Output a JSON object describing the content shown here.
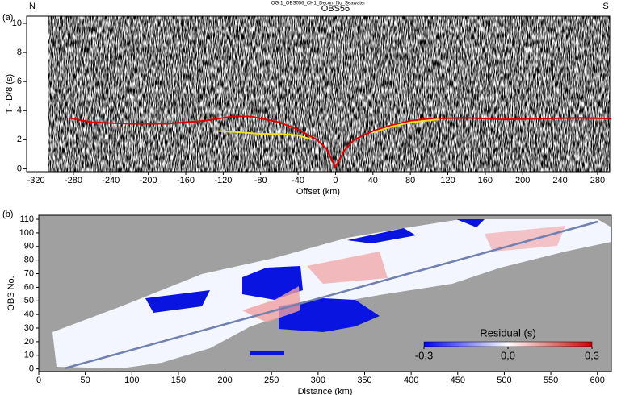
{
  "chart_data": [
    {
      "type": "line",
      "title": "OGr1_OBS056_CH1_Decon_No_Seawater",
      "panel": "(a)",
      "station": "OBS56",
      "left_label": "N",
      "right_label": "S",
      "x_label": "Offset (km)",
      "y_label": "T - D/8 (s)",
      "xlim": [
        -330,
        293
      ],
      "ylim": [
        -0.2,
        10.5
      ],
      "xticks": [
        -320,
        -280,
        -240,
        -200,
        -160,
        -120,
        -80,
        -40,
        0,
        40,
        80,
        120,
        160,
        200,
        240,
        280
      ],
      "yticks": [
        0,
        2,
        4,
        6,
        8,
        10
      ],
      "series": [
        {
          "color": "#e00000",
          "x": [
            -285,
            -260,
            -220,
            -180,
            -140,
            -110,
            -90,
            -60,
            -40,
            -20,
            -10,
            -3,
            0,
            3,
            10,
            20,
            40,
            60,
            80,
            100,
            140,
            180,
            220,
            260,
            295
          ],
          "values": [
            3.5,
            3.2,
            3.1,
            3.1,
            3.3,
            3.6,
            3.6,
            3.2,
            2.7,
            2.0,
            1.4,
            0.5,
            0.1,
            0.5,
            1.3,
            2.0,
            2.6,
            3.0,
            3.3,
            3.45,
            3.5,
            3.4,
            3.45,
            3.5,
            3.45
          ]
        },
        {
          "color": "#f0e020",
          "x": [
            -125,
            -100,
            -80,
            -60,
            -40,
            -25,
            null,
            40,
            60,
            80,
            110
          ],
          "values": [
            2.6,
            2.5,
            2.4,
            2.4,
            2.3,
            2.0,
            null,
            2.5,
            2.9,
            3.2,
            3.4
          ]
        }
      ]
    },
    {
      "type": "heatmap",
      "panel": "(b)",
      "x_label": "Distance (km)",
      "y_label": "OBS No.",
      "xlim": [
        0,
        615
      ],
      "ylim": [
        -2,
        113
      ],
      "xticks": [
        0,
        50,
        100,
        150,
        200,
        250,
        300,
        350,
        400,
        450,
        500,
        550,
        600
      ],
      "yticks": [
        0,
        10,
        20,
        30,
        40,
        50,
        60,
        70,
        80,
        90,
        100,
        110
      ],
      "colorbar": {
        "label": "Residual (s)",
        "lim": [
          -0.3,
          0.3
        ],
        "ticks": [
          {
            "value": -0.3,
            "label": "-0,3"
          },
          {
            "value": 0,
            "label": "0,0"
          },
          {
            "value": 0.3,
            "label": "0,3"
          }
        ],
        "colors": [
          "#0000ff",
          "#ffffff",
          "#cc0000"
        ]
      }
    }
  ]
}
